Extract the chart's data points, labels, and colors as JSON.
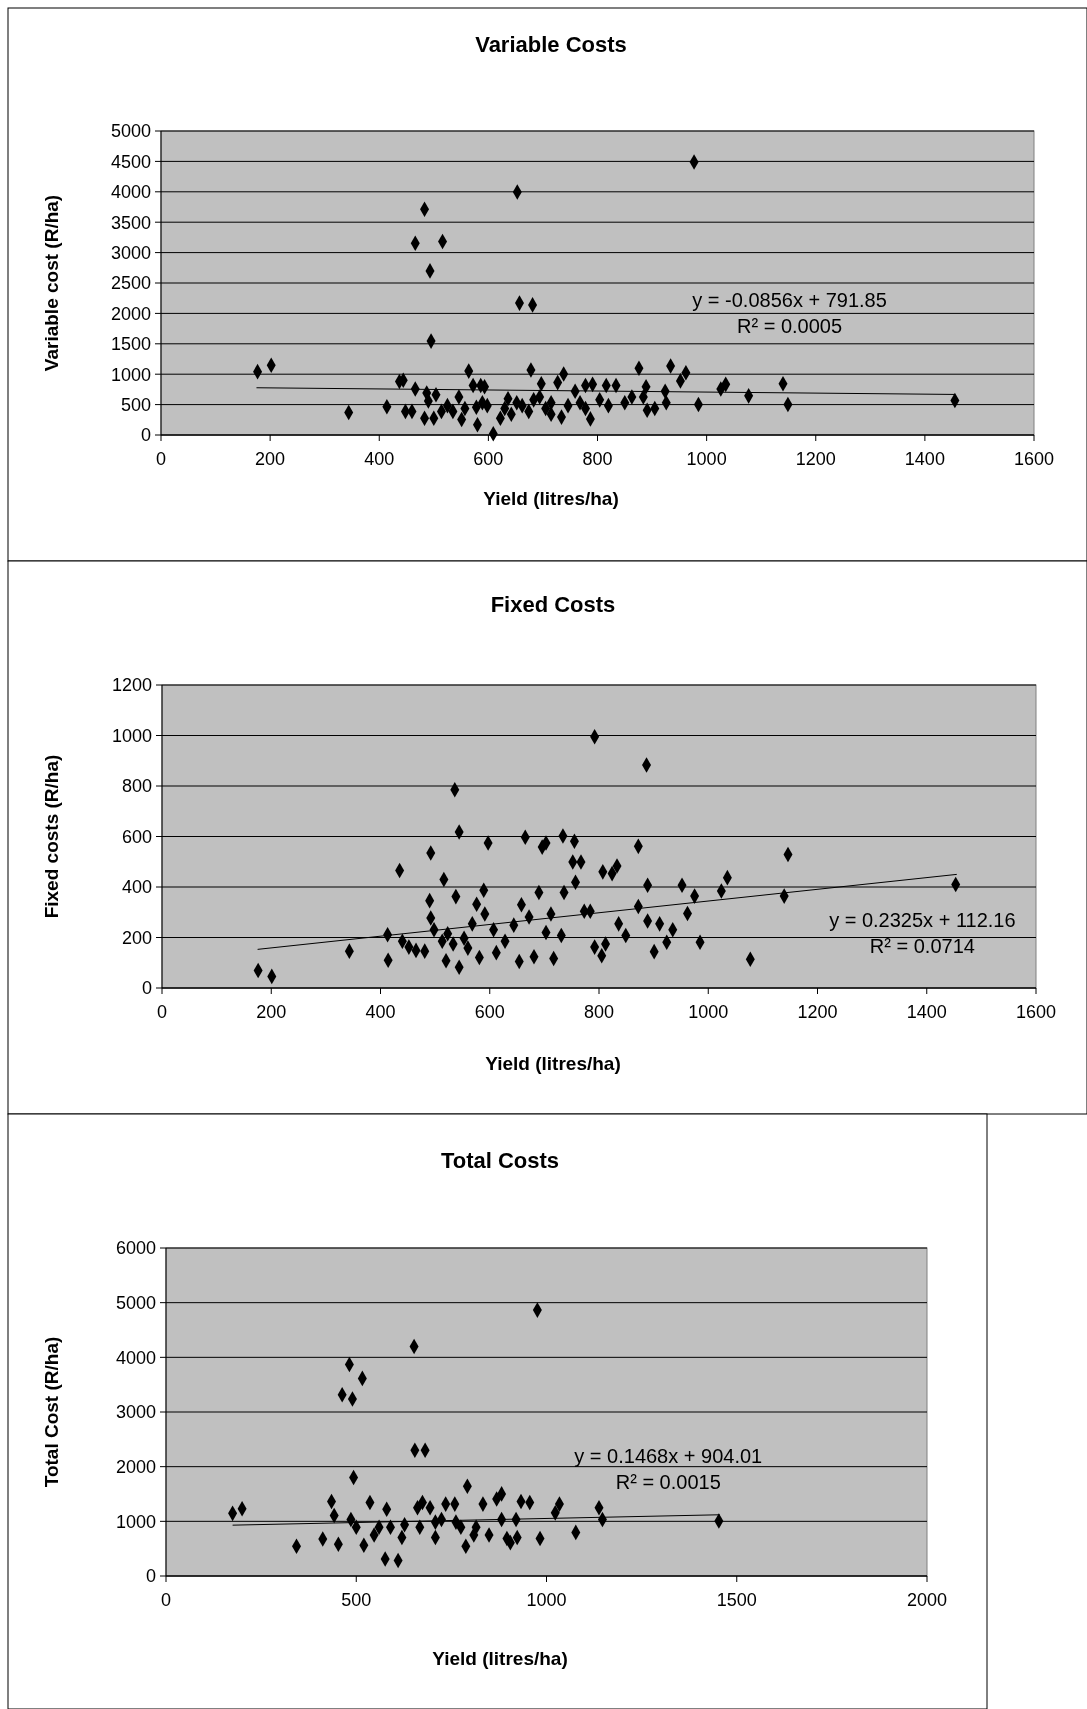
{
  "chart_data": [
    {
      "type": "scatter",
      "title": "Variable Costs",
      "xlabel": "Yield (litres/ha)",
      "ylabel": "Variable cost  (R/ha)",
      "xlim": [
        0,
        1600
      ],
      "xticks": [
        0,
        200,
        400,
        600,
        800,
        1000,
        1200,
        1400,
        1600
      ],
      "ylim": [
        0,
        5000
      ],
      "yticks": [
        0,
        500,
        1000,
        1500,
        2000,
        2500,
        3000,
        3500,
        4000,
        4500,
        5000
      ],
      "grid": "y",
      "annotations": [
        "y = -0.0856x  + 791.85",
        "R² = 0.0005"
      ],
      "series": [
        {
          "color": "#000000",
          "marker": "diamond",
          "x": [
            177,
            202,
            344,
            414,
            437,
            444,
            448,
            460,
            466,
            466,
            483,
            493,
            516,
            495,
            483,
            487,
            490,
            500,
            504,
            514,
            525,
            535,
            546,
            551,
            564,
            572,
            578,
            580,
            586,
            593,
            598,
            609,
            622,
            636,
            642,
            653,
            657,
            681,
            678,
            662,
            674,
            683,
            697,
            705,
            715,
            727,
            734,
            738,
            746,
            759,
            768,
            778,
            787,
            791,
            804,
            816,
            834,
            850,
            876,
            889,
            891,
            905,
            924,
            934,
            952,
            962,
            985,
            977,
            1026,
            1035,
            1077,
            1140,
            1149,
            1455,
            630,
            715,
            778,
            820,
            863,
            884,
            926,
            557,
            589,
            652,
            694
          ],
          "values": [
            1042,
            1146,
            369,
            464,
            880,
            900,
            388,
            388,
            758,
            3153,
            3712,
            2699,
            3182,
            1544,
            275,
            691,
            559,
            275,
            663,
            388,
            483,
            388,
            625,
            256,
            1051,
            814,
            455,
            170,
            814,
            795,
            483,
            20,
            275,
            597,
            341,
            3996,
            2169,
            2140,
            1070,
            483,
            388,
            578,
            843,
            436,
            530,
            862,
            294,
            1004,
            483,
            720,
            530,
            814,
            265,
            833,
            578,
            814,
            814,
            530,
            1098,
            795,
            407,
            436,
            720,
            1136,
            890,
            1023,
            502,
            4489,
            758,
            833,
            644,
            843,
            502,
            568,
            436,
            341,
            436,
            483,
            625,
            625,
            530,
            436,
            530,
            530,
            625
          ]
        },
        {
          "type": "line",
          "color": "#000000",
          "x": [
            175,
            1455
          ],
          "marker": "none",
          "values": [
            777,
            667
          ]
        }
      ]
    },
    {
      "type": "scatter",
      "title": "Fixed Costs",
      "xlabel": "Yield (litres/ha)",
      "ylabel": "Fixed costs  (R/ha)",
      "xlim": [
        0,
        1600
      ],
      "xticks": [
        0,
        200,
        400,
        600,
        800,
        1000,
        1200,
        1400,
        1600
      ],
      "ylim": [
        0,
        1200
      ],
      "yticks": [
        0,
        200,
        400,
        600,
        800,
        1000,
        1200
      ],
      "grid": "y",
      "annotations": [
        "y = 0.2325x  + 112.16",
        "R² = 0.0714"
      ],
      "series": [
        {
          "color": "#000000",
          "marker": "diamond",
          "x": [
            176,
            201,
            343,
            413,
            414,
            435,
            440,
            452,
            465,
            481,
            492,
            490,
            492,
            498,
            513,
            516,
            523,
            520,
            533,
            536,
            538,
            544,
            544,
            553,
            560,
            568,
            576,
            581,
            589,
            597,
            591,
            607,
            612,
            628,
            644,
            654,
            658,
            665,
            672,
            681,
            690,
            696,
            703,
            703,
            712,
            717,
            734,
            736,
            731,
            755,
            752,
            757,
            767,
            773,
            784,
            792,
            792,
            805,
            812,
            807,
            824,
            833,
            836,
            849,
            872,
            872,
            887,
            889,
            889,
            901,
            911,
            924,
            935,
            952,
            962,
            975,
            985,
            1024,
            1035,
            1077,
            1139,
            1146,
            1453
          ],
          "values": [
            69,
            46,
            146,
            211,
            110,
            465,
            185,
            162,
            149,
            146,
            535,
            346,
            277,
            231,
            185,
            430,
            215,
            108,
            174,
            785,
            362,
            618,
            82,
            197,
            158,
            254,
            332,
            121,
            387,
            574,
            293,
            231,
            140,
            185,
            249,
            105,
            330,
            597,
            281,
            124,
            378,
            558,
            574,
            220,
            293,
            117,
            602,
            378,
            208,
            581,
            499,
            419,
            499,
            304,
            304,
            995,
            162,
            128,
            174,
            460,
            453,
            483,
            254,
            208,
            561,
            323,
            883,
            407,
            265,
            144,
            254,
            181,
            231,
            407,
            295,
            364,
            181,
            384,
            437,
            114,
            364,
            529,
            410
          ]
        },
        {
          "type": "line",
          "color": "#000000",
          "x": [
            175,
            1455
          ],
          "marker": "none",
          "values": [
            153,
            450
          ]
        }
      ]
    },
    {
      "type": "scatter",
      "title": "Total Costs",
      "xlabel": "Yield (litres/ha)",
      "ylabel": "Total Cost  (R/ha)",
      "xlim": [
        0,
        2000
      ],
      "xticks": [
        0,
        500,
        1000,
        1500,
        2000
      ],
      "ylim": [
        0,
        6000
      ],
      "yticks": [
        0,
        1000,
        2000,
        3000,
        4000,
        5000,
        6000
      ],
      "grid": "y",
      "annotations": [
        "y = 0.1468x  + 904.01",
        "R² = 0.0015"
      ],
      "series": [
        {
          "color": "#000000",
          "marker": "diamond",
          "x": [
            175,
            200,
            343,
            412,
            435,
            442,
            453,
            463,
            482,
            490,
            493,
            516,
            486,
            500,
            520,
            536,
            547,
            576,
            580,
            590,
            610,
            620,
            652,
            654,
            681,
            661,
            674,
            667,
            694,
            708,
            724,
            735,
            759,
            775,
            788,
            792,
            809,
            833,
            849,
            869,
            882,
            882,
            896,
            905,
            920,
            923,
            933,
            956,
            976,
            983,
            1023,
            1034,
            1077,
            1138,
            1147,
            1453,
            627,
            708,
            762,
            815,
            560
          ],
          "values": [
            1146,
            1230,
            545,
            676,
            1362,
            1108,
            582,
            3315,
            3869,
            3239,
            1803,
            3615,
            1033,
            892,
            563,
            1343,
            751,
            310,
            1221,
            892,
            282,
            704,
            4197,
            2300,
            2300,
            1249,
            1343,
            892,
            1249,
            704,
            1033,
            1315,
            1315,
            892,
            545,
            1643,
            751,
            1315,
            751,
            1408,
            1502,
            1033,
            685,
            610,
            1033,
            704,
            1362,
            1343,
            4864,
            685,
            1155,
            1315,
            798,
            1249,
            1033,
            1005,
            939,
            986,
            986,
            892,
            892
          ]
        },
        {
          "type": "line",
          "color": "#000000",
          "x": [
            175,
            1455
          ],
          "marker": "none",
          "values": [
            930,
            1120
          ]
        }
      ]
    }
  ]
}
